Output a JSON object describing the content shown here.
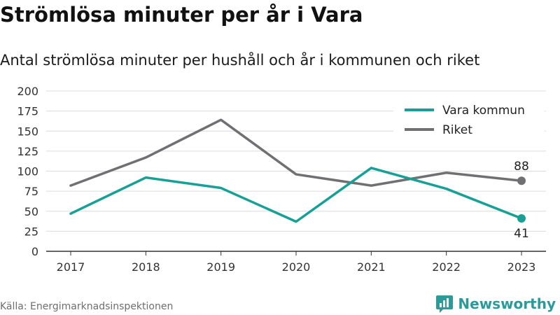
{
  "title": "Strömlösa minuter per år i Vara",
  "subtitle": "Antal strömlösa minuter per hushåll och år i kommunen och riket",
  "source": "Källa: Energimarknadsinspektionen",
  "brand": {
    "name": "Newsworthy",
    "icon": "newsworthy-logo-icon",
    "color": "#2b9a9a"
  },
  "chart_data": {
    "type": "line",
    "x": [
      "2017",
      "2018",
      "2019",
      "2020",
      "2021",
      "2022",
      "2023"
    ],
    "yticks": [
      "0",
      "25",
      "50",
      "75",
      "100",
      "125",
      "150",
      "175",
      "200"
    ],
    "ylim": [
      0,
      200
    ],
    "grid": true,
    "legend_position": "top-right",
    "series": [
      {
        "name": "Vara kommun",
        "color": "#16a096",
        "values": [
          47,
          92,
          79,
          37,
          104,
          78,
          41
        ],
        "end_label": "41"
      },
      {
        "name": "Riket",
        "color": "#707073",
        "values": [
          82,
          117,
          164,
          96,
          82,
          98,
          88
        ],
        "end_label": "88"
      }
    ]
  }
}
